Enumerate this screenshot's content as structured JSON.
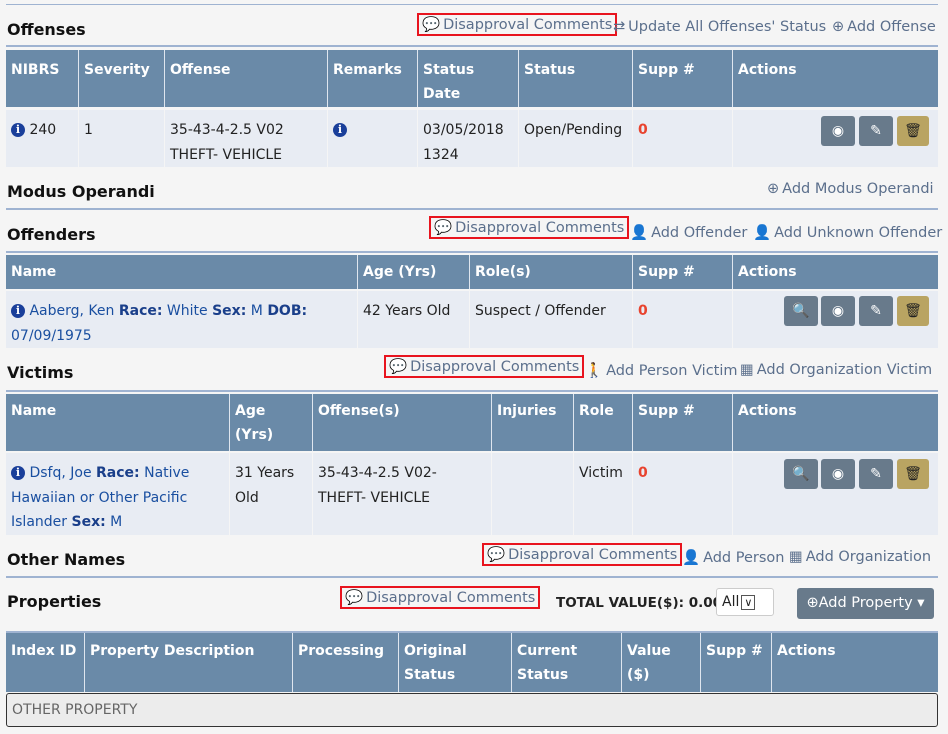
{
  "common": {
    "disapproval": "Disapproval Comments",
    "accent": "#6a8aa8"
  },
  "offenses": {
    "title": "Offenses",
    "update_all": "Update All Offenses' Status",
    "add": "Add Offense",
    "headers": [
      "NIBRS",
      "Severity",
      "Offense",
      "Remarks",
      "Status Date",
      "Status",
      "Supp #",
      "Actions"
    ],
    "row": {
      "nibrs": "240",
      "severity": "1",
      "offense": "35-43-4-2.5 V02 THEFT- VEHICLE",
      "status_date": "03/05/2018 1324",
      "status": "Open/Pending",
      "supp": "0"
    }
  },
  "modus": {
    "title": "Modus Operandi",
    "add": "Add Modus Operandi"
  },
  "offenders": {
    "title": "Offenders",
    "add": "Add Offender",
    "add_unknown": "Add Unknown Offender",
    "headers": [
      "Name",
      "Age (Yrs)",
      "Role(s)",
      "Supp #",
      "Actions"
    ],
    "row": {
      "name": "Aaberg, Ken",
      "race_label": "Race:",
      "race": "White",
      "sex_label": "Sex:",
      "sex": "M",
      "dob_label": "DOB:",
      "dob": "07/09/1975",
      "age": "42 Years Old",
      "role": "Suspect / Offender",
      "supp": "0"
    }
  },
  "victims": {
    "title": "Victims",
    "add_person": "Add Person Victim",
    "add_org": "Add Organization Victim",
    "headers": [
      "Name",
      "Age (Yrs)",
      "Offense(s)",
      "Injuries",
      "Role",
      "Supp #",
      "Actions"
    ],
    "row": {
      "name": "Dsfq, Joe",
      "race_label": "Race:",
      "race": "Native Hawaiian or Other Pacific Islander",
      "sex_label": "Sex:",
      "sex": "M",
      "age": "31 Years Old",
      "offense": "35-43-4-2.5 V02- THEFT- VEHICLE",
      "injuries": "",
      "role": "Victim",
      "supp": "0"
    }
  },
  "other_names": {
    "title": "Other Names",
    "add_person": "Add Person",
    "add_org": "Add Organization"
  },
  "properties": {
    "title": "Properties",
    "total_label": "TOTAL VALUE($): 0.00",
    "filter": "All",
    "add": "Add Property",
    "headers": [
      "Index ID",
      "Property Description",
      "Processing",
      "Original Status",
      "Current Status",
      "Value ($)",
      "Supp #",
      "Actions"
    ],
    "group": "OTHER PROPERTY"
  }
}
